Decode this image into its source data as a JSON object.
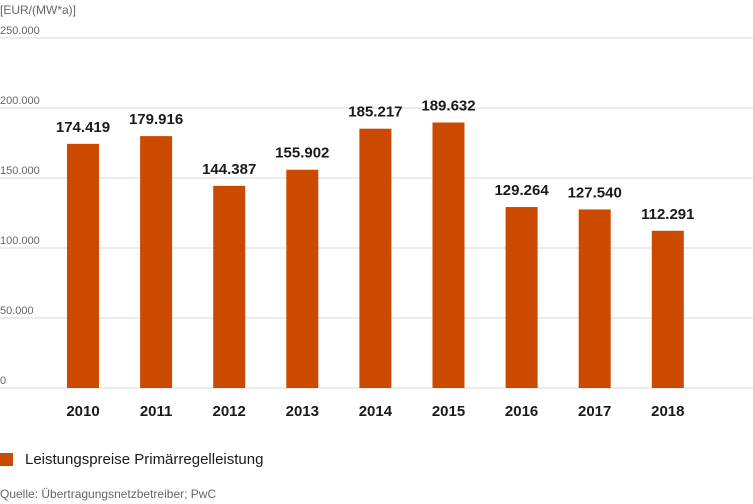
{
  "chart_data": {
    "type": "bar",
    "unit_label": "[EUR/(MW*a)]",
    "categories": [
      "2010",
      "2011",
      "2012",
      "2013",
      "2014",
      "2015",
      "2016",
      "2017",
      "2018"
    ],
    "series": [
      {
        "name": "Leistungspreise Primärregelleistung",
        "values": [
          174419,
          179916,
          144387,
          155902,
          185217,
          189632,
          129264,
          127540,
          112291
        ],
        "value_labels": [
          "174.419",
          "179.916",
          "144.387",
          "155.902",
          "185.217",
          "189.632",
          "129.264",
          "127.540",
          "112.291"
        ],
        "color": "#cc4a00"
      }
    ],
    "ylim": [
      0,
      250000
    ],
    "yticks": [
      0,
      50000,
      100000,
      150000,
      200000,
      250000
    ],
    "ytick_labels": [
      "0",
      "50.000",
      "100.000",
      "150.000",
      "200.000",
      "250.000"
    ],
    "grid": true,
    "legend": "bottom-left"
  },
  "source": "Quelle: Übertragungsnetzbetreiber; PwC"
}
